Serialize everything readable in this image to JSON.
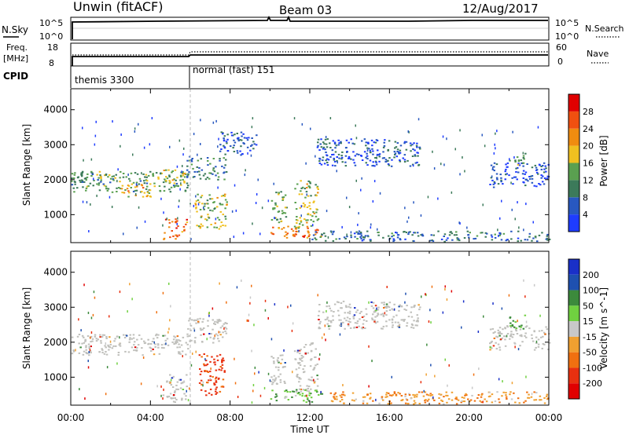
{
  "header": {
    "station": "Unwin (fitACF)",
    "beam": "Beam 03",
    "date": "12/Aug/2017"
  },
  "top_panels": {
    "nsky_label": "N.Sky",
    "nsky_ticks": [
      "10^5",
      "10^0"
    ],
    "nsearch_label": "N.Search",
    "freq_label": "Freq.",
    "freq_unit": "[MHz]",
    "freq_ticks": [
      "18",
      "8"
    ],
    "nave_label": "Nave",
    "nave_ticks": [
      "60",
      "0"
    ],
    "cpid_label": "CPID",
    "cpid_segments": [
      {
        "label": "themis 3300",
        "start_hour": 0
      },
      {
        "label": "normal (fast) 151",
        "start_hour": 6
      }
    ]
  },
  "colors": {
    "power_scale": [
      "#1e3cff",
      "#2858c0",
      "#3c7a5a",
      "#5aa050",
      "#f0c020",
      "#f08c10",
      "#f05010",
      "#e00000"
    ],
    "velocity_scale": [
      "#1a30c8",
      "#1e50b0",
      "#3c8a3c",
      "#70d040",
      "#c8c8c8",
      "#f0a030",
      "#f07010",
      "#e83010",
      "#e00000"
    ],
    "ground_scatter": "#c0c0bc"
  },
  "chart_data": [
    {
      "type": "heatmap",
      "name": "power",
      "ylabel": "Slant Range [km]",
      "ylim": [
        200,
        4600
      ],
      "yticks": [
        1000,
        2000,
        3000,
        4000
      ],
      "xlim_hours": [
        0,
        24
      ],
      "xticks": [
        "00:00",
        "04:00",
        "08:00",
        "12:00",
        "16:00",
        "20:00",
        "00:00"
      ],
      "colorbar": {
        "label": "Power [dB]",
        "range": [
          0,
          32
        ],
        "ticks": [
          "4",
          "8",
          "12",
          "16",
          "20",
          "24",
          "28"
        ]
      },
      "echo_regions": [
        {
          "t": [
            0.0,
            5.9
          ],
          "r": [
            1650,
            2250
          ],
          "level": 12
        },
        {
          "t": [
            2.5,
            4.0
          ],
          "r": [
            1500,
            1900
          ],
          "level": 20
        },
        {
          "t": [
            4.6,
            5.9
          ],
          "r": [
            1900,
            2300
          ],
          "level": 16
        },
        {
          "t": [
            5.8,
            7.8
          ],
          "r": [
            2000,
            2700
          ],
          "level": 10
        },
        {
          "t": [
            7.4,
            9.3
          ],
          "r": [
            2700,
            3400
          ],
          "level": 6
        },
        {
          "t": [
            6.2,
            7.8
          ],
          "r": [
            600,
            1600
          ],
          "level": 16
        },
        {
          "t": [
            4.6,
            5.8
          ],
          "r": [
            300,
            900
          ],
          "level": 24
        },
        {
          "t": [
            10.0,
            10.8
          ],
          "r": [
            800,
            1700
          ],
          "level": 14
        },
        {
          "t": [
            11.2,
            12.4
          ],
          "r": [
            600,
            2000
          ],
          "level": 16
        },
        {
          "t": [
            10.0,
            12.6
          ],
          "r": [
            350,
            700
          ],
          "level": 24
        },
        {
          "t": [
            12.3,
            17.5
          ],
          "r": [
            2400,
            3200
          ],
          "level": 6
        },
        {
          "t": [
            21.0,
            24.0
          ],
          "r": [
            1800,
            2500
          ],
          "level": 5
        },
        {
          "t": [
            22.0,
            22.8
          ],
          "r": [
            2400,
            2800
          ],
          "level": 14
        },
        {
          "t": [
            12.0,
            24.0
          ],
          "r": [
            250,
            550
          ],
          "level": 8
        }
      ]
    },
    {
      "type": "heatmap",
      "name": "velocity",
      "ylabel": "Slant Range [km]",
      "xlabel": "Time UT",
      "ylim": [
        200,
        4600
      ],
      "yticks": [
        1000,
        2000,
        3000,
        4000
      ],
      "xlim_hours": [
        0,
        24
      ],
      "xticks": [
        "00:00",
        "04:00",
        "08:00",
        "12:00",
        "16:00",
        "20:00",
        "00:00"
      ],
      "colorbar": {
        "label": "Velocity [m s^-1]",
        "ticks": [
          "200",
          "100",
          "50",
          "15",
          "-15",
          "-50",
          "-100",
          "-200"
        ]
      },
      "echo_regions": [
        {
          "t": [
            0.0,
            5.9
          ],
          "r": [
            1650,
            2250
          ],
          "kind": "ground"
        },
        {
          "t": [
            5.8,
            7.8
          ],
          "r": [
            2000,
            2700
          ],
          "kind": "ground"
        },
        {
          "t": [
            4.6,
            5.8
          ],
          "r": [
            300,
            1100
          ],
          "kind": "ground"
        },
        {
          "t": [
            6.4,
            7.7
          ],
          "r": [
            500,
            1700
          ],
          "velocity": -120
        },
        {
          "t": [
            10.0,
            10.8
          ],
          "r": [
            800,
            1700
          ],
          "kind": "ground"
        },
        {
          "t": [
            11.2,
            12.4
          ],
          "r": [
            600,
            2000
          ],
          "kind": "ground"
        },
        {
          "t": [
            10.0,
            12.6
          ],
          "r": [
            300,
            650
          ],
          "velocity": 40
        },
        {
          "t": [
            12.3,
            17.5
          ],
          "r": [
            2400,
            3200
          ],
          "kind": "ground"
        },
        {
          "t": [
            21.0,
            24.0
          ],
          "r": [
            1800,
            2500
          ],
          "kind": "ground"
        },
        {
          "t": [
            22.0,
            22.8
          ],
          "r": [
            2400,
            2800
          ],
          "velocity": 60
        },
        {
          "t": [
            13.0,
            24.0
          ],
          "r": [
            250,
            600
          ],
          "velocity": -40
        }
      ]
    }
  ]
}
